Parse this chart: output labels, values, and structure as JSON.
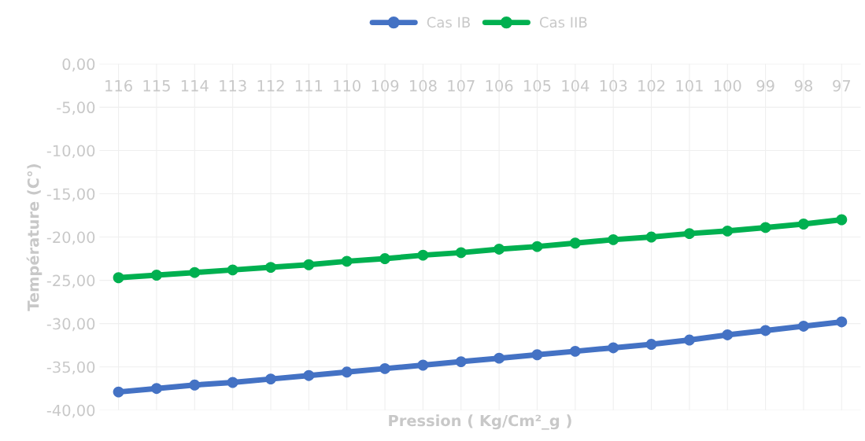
{
  "chart_data": {
    "type": "line",
    "xlabel": "Pression ( Kg/Cm²_g )",
    "ylabel": "Température (C°)",
    "categories": [
      "116",
      "115",
      "114",
      "113",
      "112",
      "111",
      "110",
      "109",
      "108",
      "107",
      "106",
      "105",
      "104",
      "103",
      "102",
      "101",
      "100",
      "99",
      "98",
      "97"
    ],
    "series": [
      {
        "name": "Cas IB",
        "color": "#4472c4",
        "values": [
          -37.9,
          -37.5,
          -37.1,
          -36.8,
          -36.4,
          -36.0,
          -35.6,
          -35.2,
          -34.8,
          -34.4,
          -34.0,
          -33.6,
          -33.2,
          -32.8,
          -32.4,
          -31.9,
          -31.3,
          -30.8,
          -30.3,
          -29.8
        ]
      },
      {
        "name": "Cas IIB",
        "color": "#00b050",
        "values": [
          -24.7,
          -24.4,
          -24.1,
          -23.8,
          -23.5,
          -23.2,
          -22.8,
          -22.5,
          -22.1,
          -21.8,
          -21.4,
          -21.1,
          -20.7,
          -20.3,
          -20.0,
          -19.6,
          -19.3,
          -18.9,
          -18.5,
          -18.0
        ]
      }
    ],
    "ylim": [
      -40,
      0
    ],
    "yticks": [
      {
        "value": 0,
        "label": "0,00"
      },
      {
        "value": -5,
        "label": "-5,00"
      },
      {
        "value": -10,
        "label": "-10,00"
      },
      {
        "value": -15,
        "label": "-15,00"
      },
      {
        "value": -20,
        "label": "-20,00"
      },
      {
        "value": -25,
        "label": "-25,00"
      },
      {
        "value": -30,
        "label": "-30,00"
      },
      {
        "value": -35,
        "label": "-35,00"
      },
      {
        "value": -40,
        "label": "-40,00"
      }
    ],
    "grid": true,
    "legend": "top",
    "marker": "circle",
    "line_style": "solid"
  }
}
